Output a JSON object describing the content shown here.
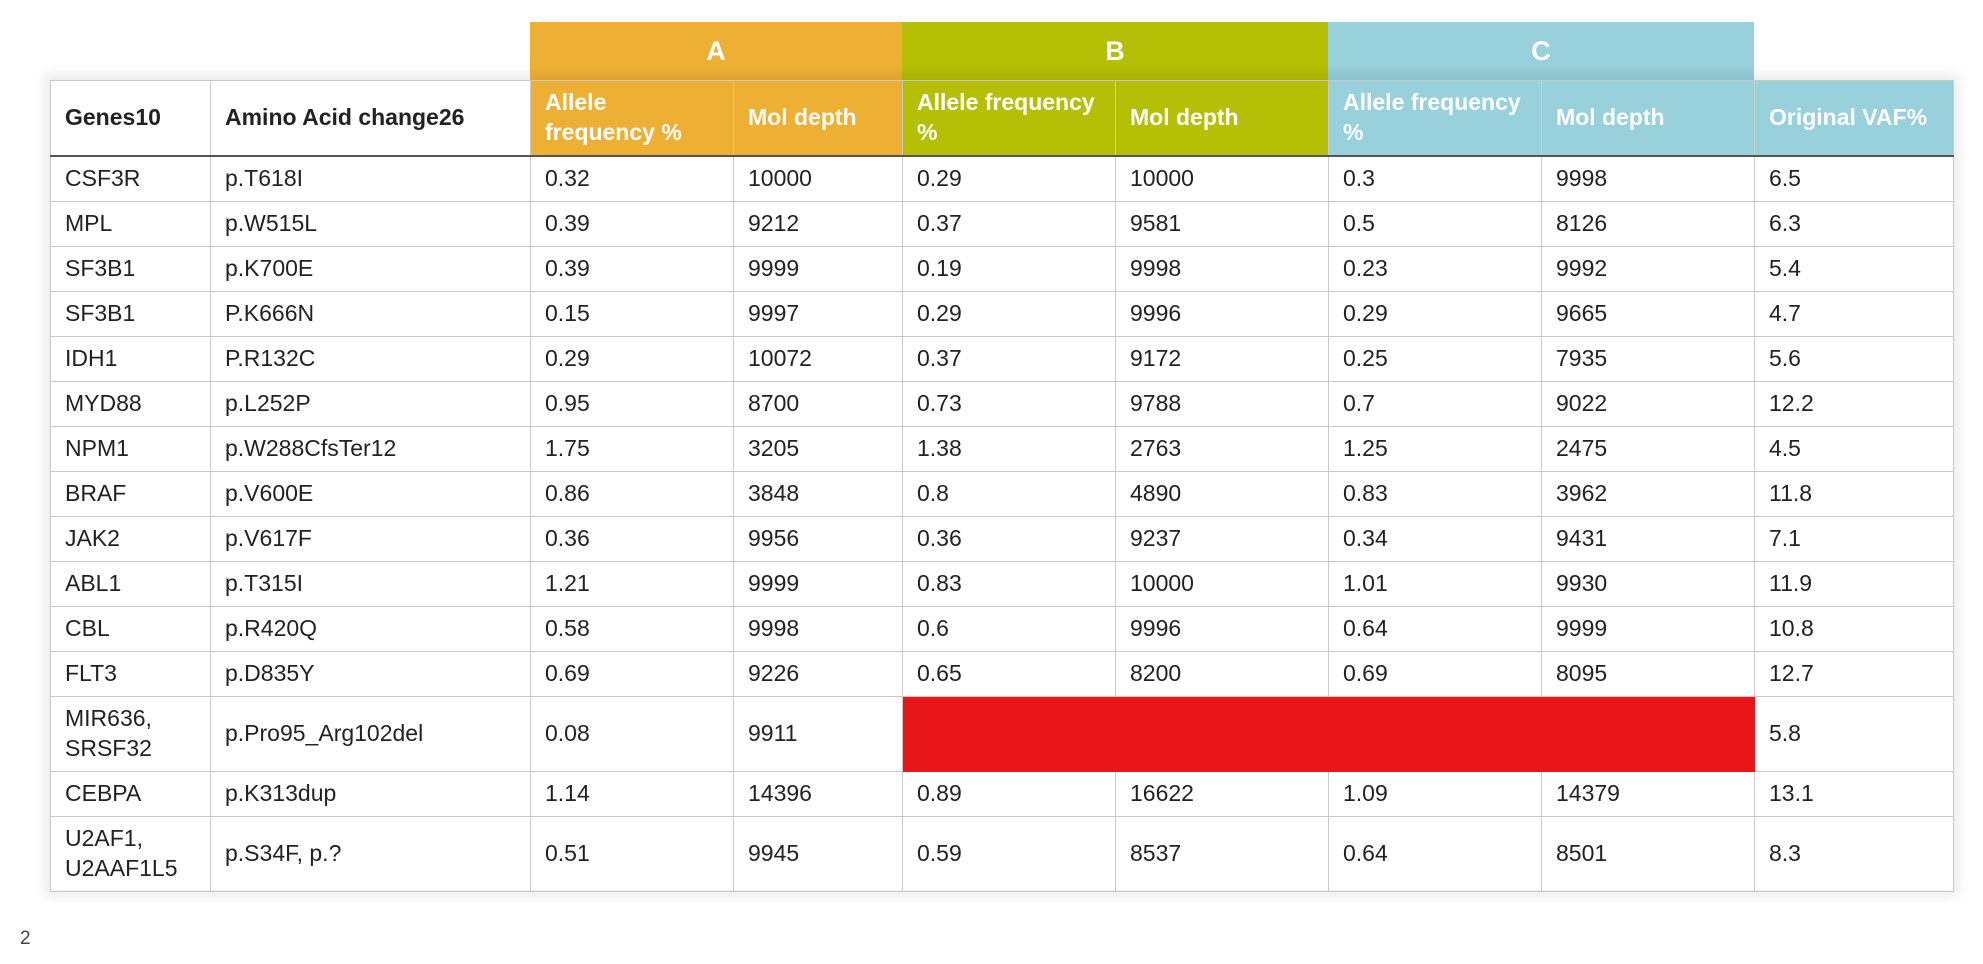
{
  "colors": {
    "group_a": "#eeb034",
    "group_b": "#b5bf05",
    "group_c": "#98d0db",
    "missing_fill": "#e81618"
  },
  "groups": [
    {
      "label": "A"
    },
    {
      "label": "B"
    },
    {
      "label": "C"
    }
  ],
  "columns": [
    "Genes10",
    "Amino Acid change26",
    "Allele frequency %",
    "Mol depth",
    "Allele frequency %",
    "Mol depth",
    "Allele frequency %",
    "Mol depth",
    "Original VAF%"
  ],
  "rows": [
    [
      "CSF3R",
      "p.T618I",
      "0.32",
      "10000",
      "0.29",
      "10000",
      "0.3",
      "9998",
      "6.5"
    ],
    [
      "MPL",
      "p.W515L",
      "0.39",
      "9212",
      "0.37",
      "9581",
      "0.5",
      "8126",
      "6.3"
    ],
    [
      "SF3B1",
      "p.K700E",
      "0.39",
      "9999",
      "0.19",
      "9998",
      "0.23",
      "9992",
      "5.4"
    ],
    [
      "SF3B1",
      "P.K666N",
      "0.15",
      "9997",
      "0.29",
      "9996",
      "0.29",
      "9665",
      "4.7"
    ],
    [
      "IDH1",
      "P.R132C",
      "0.29",
      "10072",
      "0.37",
      "9172",
      "0.25",
      "7935",
      "5.6"
    ],
    [
      "MYD88",
      "p.L252P",
      "0.95",
      "8700",
      "0.73",
      "9788",
      "0.7",
      "9022",
      "12.2"
    ],
    [
      "NPM1",
      "p.W288CfsTer12",
      "1.75",
      "3205",
      "1.38",
      "2763",
      "1.25",
      "2475",
      "4.5"
    ],
    [
      "BRAF",
      "p.V600E",
      "0.86",
      "3848",
      "0.8",
      "4890",
      "0.83",
      "3962",
      "11.8"
    ],
    [
      "JAK2",
      "p.V617F",
      "0.36",
      "9956",
      "0.36",
      "9237",
      "0.34",
      "9431",
      "7.1"
    ],
    [
      "ABL1",
      "p.T315I",
      "1.21",
      "9999",
      "0.83",
      "10000",
      "1.01",
      "9930",
      "11.9"
    ],
    [
      "CBL",
      "p.R420Q",
      "0.58",
      "9998",
      "0.6",
      "9996",
      "0.64",
      "9999",
      "10.8"
    ],
    [
      "FLT3",
      "p.D835Y",
      "0.69",
      "9226",
      "0.65",
      "8200",
      "0.69",
      "8095",
      "12.7"
    ],
    [
      "MIR636,\nSRSF32",
      "p.Pro95_Arg102del",
      "0.08",
      "9911",
      "",
      "",
      "",
      "",
      "5.8"
    ],
    [
      "CEBPA",
      "p.K313dup",
      "1.14",
      "14396",
      "0.89",
      "16622",
      "1.09",
      "14379",
      "13.1"
    ],
    [
      "U2AF1,\nU2AAF1L5",
      "p.S34F,  p.?",
      "0.51",
      "9945",
      "0.59",
      "8537",
      "0.64",
      "8501",
      "8.3"
    ]
  ],
  "page_number": "2"
}
